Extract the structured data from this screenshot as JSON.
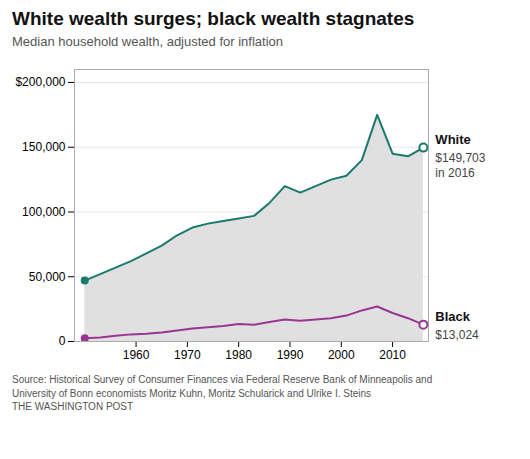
{
  "chart_data": {
    "type": "line",
    "title": "White wealth surges; black wealth stagnates",
    "subtitle": "Median household wealth, adjusted for inflation",
    "source": "Source: Historical Survey of Consumer Finances via Federal Reserve Bank of Minneapolis and\nUniversity of Bonn economists Moritz Kuhn, Moritz Schularick and Ulrike I. Steins\nTHE WASHINGTON POST",
    "x": [
      1950,
      1953,
      1956,
      1959,
      1962,
      1965,
      1968,
      1971,
      1974,
      1977,
      1980,
      1983,
      1986,
      1989,
      1992,
      1995,
      1998,
      2001,
      2004,
      2007,
      2010,
      2013,
      2016
    ],
    "series": [
      {
        "name": "White",
        "type": "area",
        "color": "#1a7a6e",
        "marker": "circle",
        "values": [
          47000,
          52000,
          57000,
          62000,
          68000,
          74000,
          82000,
          88000,
          91000,
          93000,
          95000,
          97000,
          107000,
          120000,
          115000,
          120000,
          125000,
          128000,
          140000,
          175000,
          145000,
          143000,
          149703
        ]
      },
      {
        "name": "Black",
        "type": "line",
        "color": "#9b3594",
        "marker": "circle",
        "values": [
          2500,
          3000,
          4500,
          5500,
          6000,
          7000,
          8500,
          10000,
          11000,
          12000,
          13500,
          13000,
          15000,
          17000,
          16000,
          17000,
          18000,
          20000,
          24000,
          27000,
          22000,
          18000,
          13024
        ]
      }
    ],
    "annotations": [
      {
        "series": "White",
        "text": "$149,703\nin 2016"
      },
      {
        "series": "Black",
        "text": "$13,024"
      }
    ],
    "xlim": [
      1948,
      2017
    ],
    "xticks": [
      1960,
      1970,
      1980,
      1990,
      2000,
      2010
    ],
    "ylim": [
      0,
      210000
    ],
    "yticks": [
      0,
      {
        "value": 50000,
        "label": "50,000"
      },
      {
        "value": 100000,
        "label": "100,000"
      },
      {
        "value": 150000,
        "label": "150,000"
      },
      {
        "value": 200000,
        "label": "$200,000"
      }
    ],
    "grid": true
  }
}
